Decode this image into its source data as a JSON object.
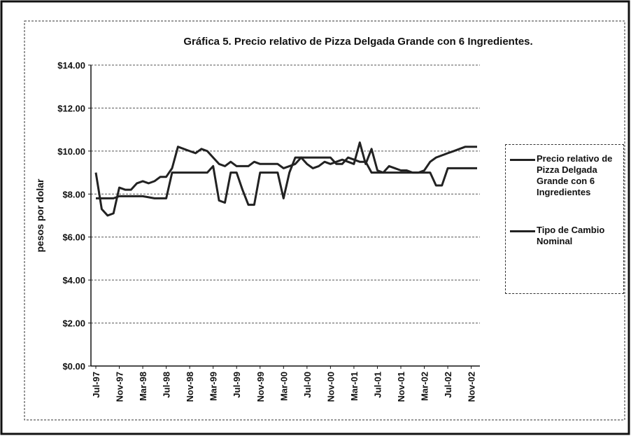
{
  "chart_data": {
    "type": "line",
    "title": "Gráfica 5.  Precio relativo de Pizza Delgada Grande con 6 Ingredientes.",
    "y_label": "pesos por dolar",
    "categories": [
      "Jul-97",
      null,
      null,
      null,
      "Nov-97",
      null,
      null,
      null,
      "Mar-98",
      null,
      null,
      null,
      "Jul-98",
      null,
      null,
      null,
      "Nov-98",
      null,
      null,
      null,
      "Mar-99",
      null,
      null,
      null,
      "Jul-99",
      null,
      null,
      null,
      "Nov-99",
      null,
      null,
      null,
      "Mar-00",
      null,
      null,
      null,
      "Jul-00",
      null,
      null,
      null,
      "Nov-00",
      null,
      null,
      null,
      "Mar-01",
      null,
      null,
      null,
      "Jul-01",
      null,
      null,
      null,
      "Nov-01",
      null,
      null,
      null,
      "Mar-02",
      null,
      null,
      null,
      "Jul-02",
      null,
      null,
      null,
      "Nov-02",
      null
    ],
    "series": [
      {
        "name": "Precio relativo de Pizza Delgada Grande con 6 Ingredientes",
        "color": "#222222",
        "values": [
          9.0,
          7.3,
          7.0,
          7.1,
          8.3,
          8.2,
          8.2,
          8.5,
          8.6,
          8.5,
          8.6,
          8.8,
          8.8,
          9.2,
          10.2,
          10.1,
          10.0,
          9.9,
          10.1,
          10.0,
          9.7,
          9.4,
          9.3,
          9.5,
          9.3,
          9.3,
          9.3,
          9.5,
          9.4,
          9.4,
          9.4,
          9.4,
          9.2,
          9.3,
          9.4,
          9.7,
          9.4,
          9.2,
          9.3,
          9.5,
          9.4,
          9.5,
          9.6,
          9.5,
          9.4,
          10.4,
          9.4,
          10.1,
          9.1,
          9.0,
          9.3,
          9.2,
          9.1,
          9.1,
          9.0,
          9.0,
          9.1,
          9.5,
          9.7,
          9.8,
          9.9,
          10.0,
          10.1,
          10.2,
          10.2,
          10.2
        ]
      },
      {
        "name": "Tipo de Cambio Nominal",
        "color": "#222222",
        "values": [
          7.8,
          7.8,
          7.8,
          7.8,
          7.9,
          7.9,
          7.9,
          7.9,
          7.9,
          7.85,
          7.8,
          7.8,
          7.8,
          9.0,
          9.0,
          9.0,
          9.0,
          9.0,
          9.0,
          9.0,
          9.3,
          7.7,
          7.6,
          9.0,
          9.0,
          8.2,
          7.5,
          7.5,
          9.0,
          9.0,
          9.0,
          9.0,
          7.8,
          9.0,
          9.7,
          9.7,
          9.7,
          9.7,
          9.7,
          9.7,
          9.7,
          9.4,
          9.4,
          9.7,
          9.6,
          9.5,
          9.5,
          9.0,
          9.0,
          9.0,
          9.0,
          9.0,
          9.0,
          9.0,
          9.0,
          9.0,
          9.0,
          9.0,
          8.4,
          8.4,
          9.2,
          9.2,
          9.2,
          9.2,
          9.2,
          9.2
        ]
      }
    ],
    "ylim": [
      0,
      14
    ],
    "yticks": [
      {
        "value": 0,
        "label": "$0.00"
      },
      {
        "value": 2,
        "label": "$2.00"
      },
      {
        "value": 4,
        "label": "$4.00"
      },
      {
        "value": 6,
        "label": "$6.00"
      },
      {
        "value": 8,
        "label": "$8.00"
      },
      {
        "value": 10,
        "label": "$10.00"
      },
      {
        "value": 12,
        "label": "$12.00"
      },
      {
        "value": 14,
        "label": "$14.00"
      }
    ],
    "grid": true
  }
}
